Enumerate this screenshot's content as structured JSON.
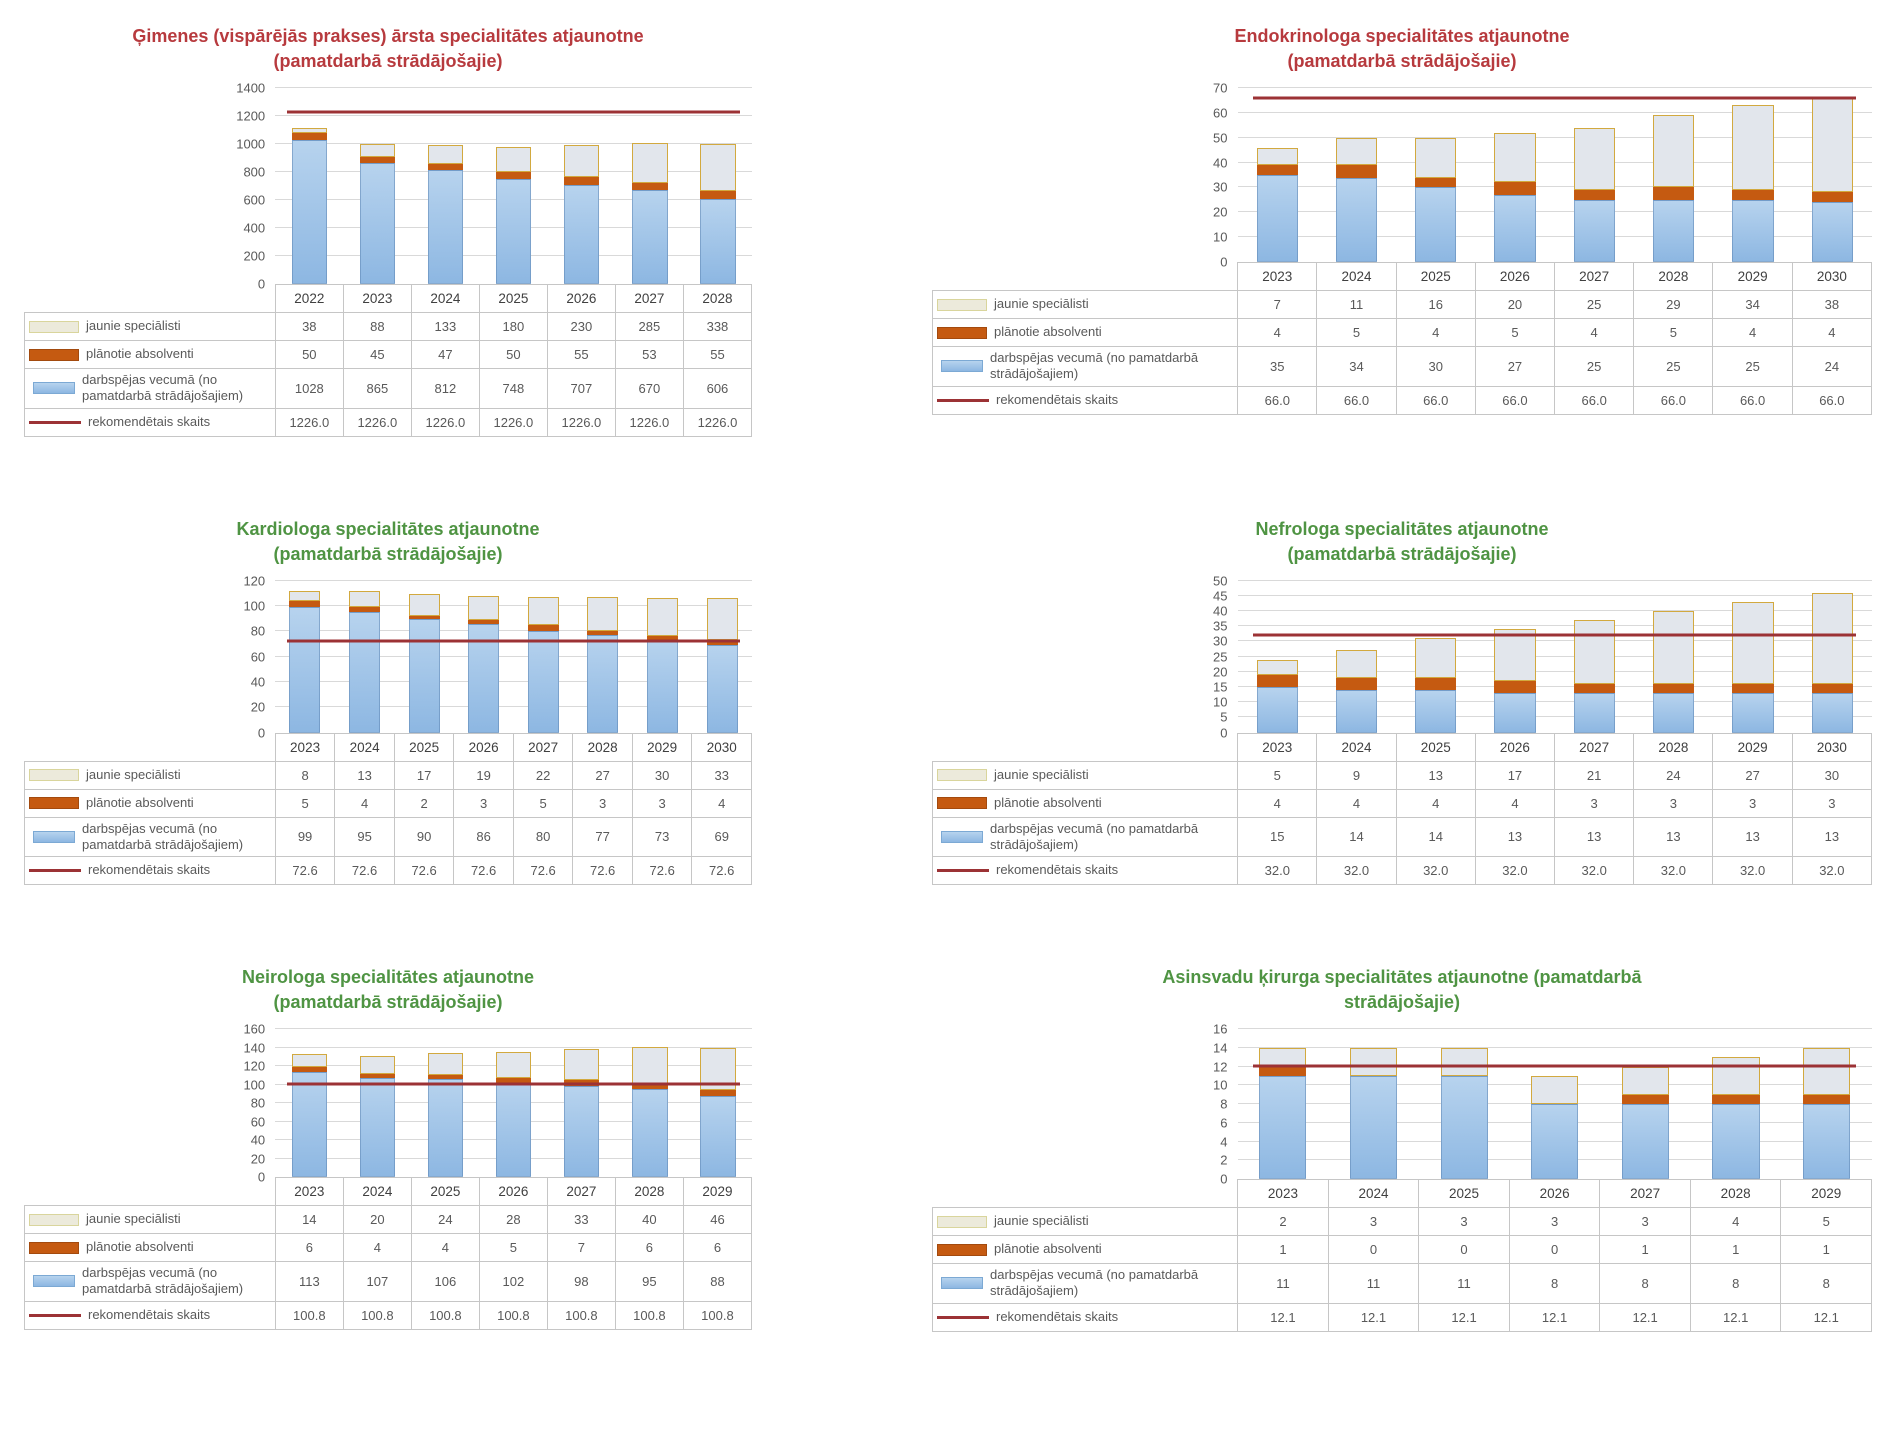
{
  "page": {
    "background": "#ffffff"
  },
  "colors": {
    "red_title": "#b73a3e",
    "green_title": "#4f9443",
    "bar_blue": "#9cc2e5",
    "bar_orange": "#c55a11",
    "bar_new_fill": "#e2e6ec",
    "bar_new_border": "#d2a93f",
    "reference_line": "#9c3235",
    "table_border": "#c6c6c6",
    "text": "#595959"
  },
  "chart_data": [
    {
      "type": "bar",
      "title": "Ģimenes (vispārējās prakses) ārsta specialitātes atjaunotne (pamatdarbā strādājošajie)",
      "title_lines": [
        "Ģimenes (vispārējās prakses) ārsta specialitātes atjaunotne",
        "(pamatdarbā strādājošajie)"
      ],
      "title_color": "#b73a3e",
      "categories": [
        "2022",
        "2023",
        "2024",
        "2025",
        "2026",
        "2027",
        "2028"
      ],
      "series": [
        {
          "name": "jaunie speciālisti",
          "values": [
            38,
            88,
            133,
            180,
            230,
            285,
            338
          ]
        },
        {
          "name": "plānotie absolventi",
          "values": [
            50,
            45,
            47,
            50,
            55,
            53,
            55
          ]
        },
        {
          "name": "darbspējas vecumā (no pamatdarbā strādājošajiem)",
          "values": [
            1028,
            865,
            812,
            748,
            707,
            670,
            606
          ]
        },
        {
          "name": "rekomendētais skaits",
          "values": [
            "1226.0",
            "1226.0",
            "1226.0",
            "1226.0",
            "1226.0",
            "1226.0",
            "1226.0"
          ],
          "line": true
        }
      ],
      "ref_value": 1226.0,
      "ylim": [
        0,
        1400
      ],
      "ystep": 200,
      "grid": true,
      "legend_position": "table-left"
    },
    {
      "type": "bar",
      "title": "Endokrinologa specialitātes atjaunotne (pamatdarbā strādājošajie)",
      "title_lines": [
        "Endokrinologa specialitātes atjaunotne",
        "(pamatdarbā strādājošajie)"
      ],
      "title_color": "#b73a3e",
      "categories": [
        "2023",
        "2024",
        "2025",
        "2026",
        "2027",
        "2028",
        "2029",
        "2030"
      ],
      "series": [
        {
          "name": "jaunie speciālisti",
          "values": [
            7,
            11,
            16,
            20,
            25,
            29,
            34,
            38
          ]
        },
        {
          "name": "plānotie absolventi",
          "values": [
            4,
            5,
            4,
            5,
            4,
            5,
            4,
            4
          ]
        },
        {
          "name": "darbspējas vecumā (no pamatdarbā strādājošajiem)",
          "values": [
            35,
            34,
            30,
            27,
            25,
            25,
            25,
            24
          ]
        },
        {
          "name": "rekomendētais skaits",
          "values": [
            "66.0",
            "66.0",
            "66.0",
            "66.0",
            "66.0",
            "66.0",
            "66.0",
            "66.0"
          ],
          "line": true
        }
      ],
      "ref_value": 66.0,
      "ylim": [
        0,
        70
      ],
      "ystep": 10,
      "grid": true,
      "legend_position": "table-left"
    },
    {
      "type": "bar",
      "title": "Kardiologa specialitātes atjaunotne (pamatdarbā strādājošajie)",
      "title_lines": [
        "Kardiologa specialitātes atjaunotne",
        "(pamatdarbā strādājošajie)"
      ],
      "title_color": "#4f9443",
      "categories": [
        "2023",
        "2024",
        "2025",
        "2026",
        "2027",
        "2028",
        "2029",
        "2030"
      ],
      "series": [
        {
          "name": "jaunie speciālisti",
          "values": [
            8,
            13,
            17,
            19,
            22,
            27,
            30,
            33
          ]
        },
        {
          "name": "plānotie absolventi",
          "values": [
            5,
            4,
            2,
            3,
            5,
            3,
            3,
            4
          ]
        },
        {
          "name": "darbspējas vecumā (no pamatdarbā strādājošajiem)",
          "values": [
            99,
            95,
            90,
            86,
            80,
            77,
            73,
            69
          ]
        },
        {
          "name": "rekomendētais skaits",
          "values": [
            "72.6",
            "72.6",
            "72.6",
            "72.6",
            "72.6",
            "72.6",
            "72.6",
            "72.6"
          ],
          "line": true
        }
      ],
      "ref_value": 72.6,
      "ylim": [
        0,
        120
      ],
      "ystep": 20,
      "grid": true,
      "legend_position": "table-left"
    },
    {
      "type": "bar",
      "title": "Nefrologa specialitātes atjaunotne (pamatdarbā strādājošajie)",
      "title_lines": [
        "Nefrologa specialitātes atjaunotne",
        "(pamatdarbā strādājošajie)"
      ],
      "title_color": "#4f9443",
      "categories": [
        "2023",
        "2024",
        "2025",
        "2026",
        "2027",
        "2028",
        "2029",
        "2030"
      ],
      "series": [
        {
          "name": "jaunie speciālisti",
          "values": [
            5,
            9,
            13,
            17,
            21,
            24,
            27,
            30
          ]
        },
        {
          "name": "plānotie absolventi",
          "values": [
            4,
            4,
            4,
            4,
            3,
            3,
            3,
            3
          ]
        },
        {
          "name": "darbspējas vecumā (no pamatdarbā strādājošajiem)",
          "values": [
            15,
            14,
            14,
            13,
            13,
            13,
            13,
            13
          ]
        },
        {
          "name": "rekomendētais skaits",
          "values": [
            "32.0",
            "32.0",
            "32.0",
            "32.0",
            "32.0",
            "32.0",
            "32.0",
            "32.0"
          ],
          "line": true
        }
      ],
      "ref_value": 32.0,
      "ylim": [
        0,
        50
      ],
      "ystep": 5,
      "grid": true,
      "legend_position": "table-left"
    },
    {
      "type": "bar",
      "title": "Neirologa specialitātes atjaunotne (pamatdarbā strādājošajie)",
      "title_lines": [
        "Neirologa specialitātes atjaunotne",
        "(pamatdarbā strādājošajie)"
      ],
      "title_color": "#4f9443",
      "categories": [
        "2023",
        "2024",
        "2025",
        "2026",
        "2027",
        "2028",
        "2029"
      ],
      "series": [
        {
          "name": "jaunie speciālisti",
          "values": [
            14,
            20,
            24,
            28,
            33,
            40,
            46
          ]
        },
        {
          "name": "plānotie absolventi",
          "values": [
            6,
            4,
            4,
            5,
            7,
            6,
            6
          ]
        },
        {
          "name": "darbspējas vecumā (no pamatdarbā strādājošajiem)",
          "values": [
            113,
            107,
            106,
            102,
            98,
            95,
            88
          ]
        },
        {
          "name": "rekomendētais skaits",
          "values": [
            "100.8",
            "100.8",
            "100.8",
            "100.8",
            "100.8",
            "100.8",
            "100.8"
          ],
          "line": true
        }
      ],
      "ref_value": 100.8,
      "ylim": [
        0,
        160
      ],
      "ystep": 20,
      "grid": true,
      "legend_position": "table-left"
    },
    {
      "type": "bar",
      "title": "Asinsvadu ķirurga specialitātes atjaunotne (pamatdarbā strādājošajie)",
      "title_lines": [
        "Asinsvadu ķirurga  specialitātes atjaunotne (pamatdarbā",
        "strādājošajie)"
      ],
      "title_color": "#4f9443",
      "categories": [
        "2023",
        "2024",
        "2025",
        "2026",
        "2027",
        "2028",
        "2029"
      ],
      "series": [
        {
          "name": "jaunie speciālisti",
          "values": [
            2,
            3,
            3,
            3,
            3,
            4,
            5
          ]
        },
        {
          "name": "plānotie absolventi",
          "values": [
            1,
            0,
            0,
            0,
            1,
            1,
            1
          ]
        },
        {
          "name": "darbspējas vecumā (no pamatdarbā strādājošajiem)",
          "values": [
            11,
            11,
            11,
            8,
            8,
            8,
            8
          ]
        },
        {
          "name": "rekomendētais skaits",
          "values": [
            "12.1",
            "12.1",
            "12.1",
            "12.1",
            "12.1",
            "12.1",
            "12.1"
          ],
          "line": true
        }
      ],
      "ref_value": 12.1,
      "ylim": [
        0,
        16
      ],
      "ystep": 2,
      "grid": true,
      "legend_position": "table-left"
    }
  ]
}
